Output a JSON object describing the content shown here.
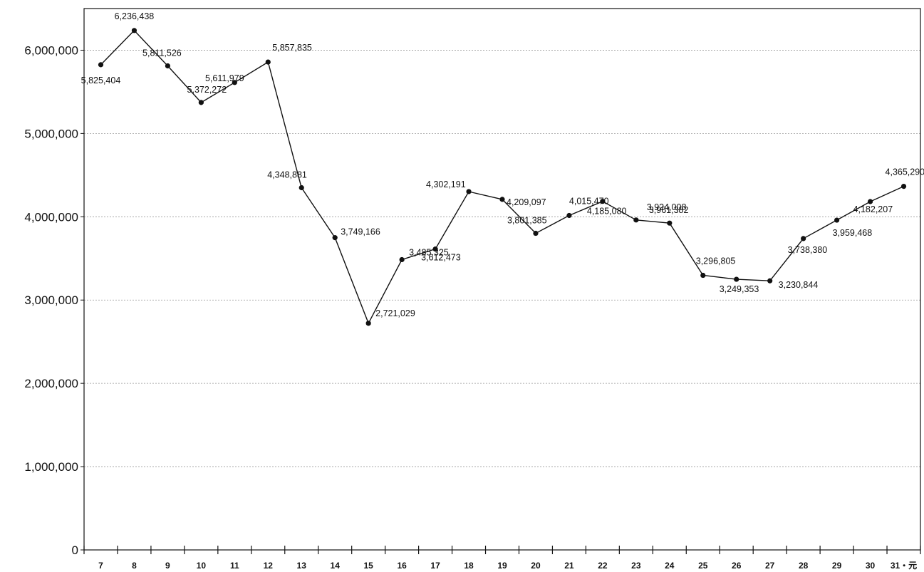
{
  "chart_data": {
    "type": "line",
    "title": "",
    "xlabel": "",
    "ylabel": "",
    "grid": true,
    "legend": "none",
    "ylim": [
      0,
      6500000
    ],
    "yticks": [
      0,
      1000000,
      2000000,
      3000000,
      4000000,
      5000000,
      6000000
    ],
    "ytick_labels": [
      "0",
      "1,000,000",
      "2,000,000",
      "3,000,000",
      "4,000,000",
      "5,000,000",
      "6,000,000"
    ],
    "categories": [
      "7",
      "8",
      "9",
      "10",
      "11",
      "12",
      "13",
      "14",
      "15",
      "16",
      "17",
      "18",
      "19",
      "20",
      "21",
      "22",
      "23",
      "24",
      "25",
      "26",
      "27",
      "28",
      "29",
      "30",
      "31・元"
    ],
    "series": [
      {
        "values": [
          5825404,
          6236438,
          5811526,
          5372272,
          5611979,
          5857835,
          4348881,
          3749166,
          2721029,
          3485325,
          3612473,
          4302191,
          4209097,
          3801385,
          4015470,
          4185080,
          3961382,
          3924008,
          3296805,
          3249353,
          3230844,
          3738380,
          3959468,
          4182207,
          4365290
        ],
        "labels": [
          "5,825,404",
          "6,236,438",
          "5,811,526",
          "5,372,272",
          "5,611,979",
          "5,857,835",
          "4,348,881",
          "3,749,166",
          "2,721,029",
          "3,485,325",
          "3,612,473",
          "4,302,191",
          "4,209,097",
          "3,801,385",
          "4,015,470",
          "4,185,080",
          "3,961,382",
          "3,924,008",
          "3,296,805",
          "3,249,353",
          "3,230,844",
          "3,738,380",
          "3,959,468",
          "4,182,207",
          "4,365,290"
        ]
      }
    ]
  }
}
